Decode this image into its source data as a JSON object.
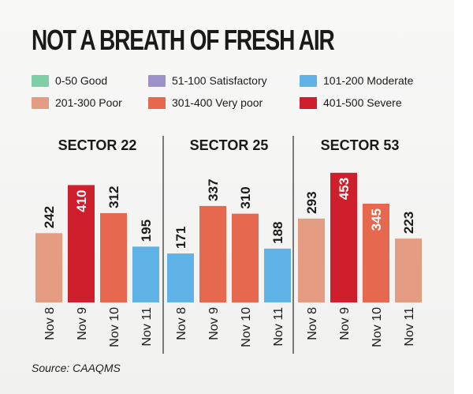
{
  "title": "NOT A BREATH OF FRESH AIR",
  "source": "Source: CAAQMS",
  "legend": [
    {
      "label": "0-50 Good",
      "color": "#7fcfa6"
    },
    {
      "label": "51-100 Satisfactory",
      "color": "#9e90c8"
    },
    {
      "label": "101-200 Moderate",
      "color": "#5fb3e6"
    },
    {
      "label": "201-300 Poor",
      "color": "#e49c83"
    },
    {
      "label": "301-400 Very poor",
      "color": "#e6694f"
    },
    {
      "label": "401-500 Severe",
      "color": "#cf1f2c"
    }
  ],
  "chart_data": {
    "type": "bar",
    "panels": [
      {
        "name": "SECTOR 22",
        "categories": [
          "Nov 8",
          "Nov 9",
          "Nov 10",
          "Nov 11"
        ],
        "values": [
          242,
          410,
          312,
          195
        ],
        "colors": [
          "#e49c83",
          "#cf1f2c",
          "#e6694f",
          "#5fb3e6"
        ]
      },
      {
        "name": "SECTOR 25",
        "categories": [
          "Nov 8",
          "Nov 9",
          "Nov 10",
          "Nov 11"
        ],
        "values": [
          171,
          337,
          310,
          188
        ],
        "colors": [
          "#5fb3e6",
          "#e6694f",
          "#e6694f",
          "#5fb3e6"
        ]
      },
      {
        "name": "SECTOR 53",
        "categories": [
          "Nov 8",
          "Nov 9",
          "Nov 10",
          "Nov 11"
        ],
        "values": [
          293,
          453,
          345,
          223
        ],
        "colors": [
          "#e49c83",
          "#cf1f2c",
          "#e6694f",
          "#e49c83"
        ]
      }
    ],
    "labels_inside_bar": [
      [
        false,
        true,
        false,
        false
      ],
      [
        false,
        false,
        false,
        false
      ],
      [
        false,
        true,
        true,
        false
      ]
    ]
  }
}
